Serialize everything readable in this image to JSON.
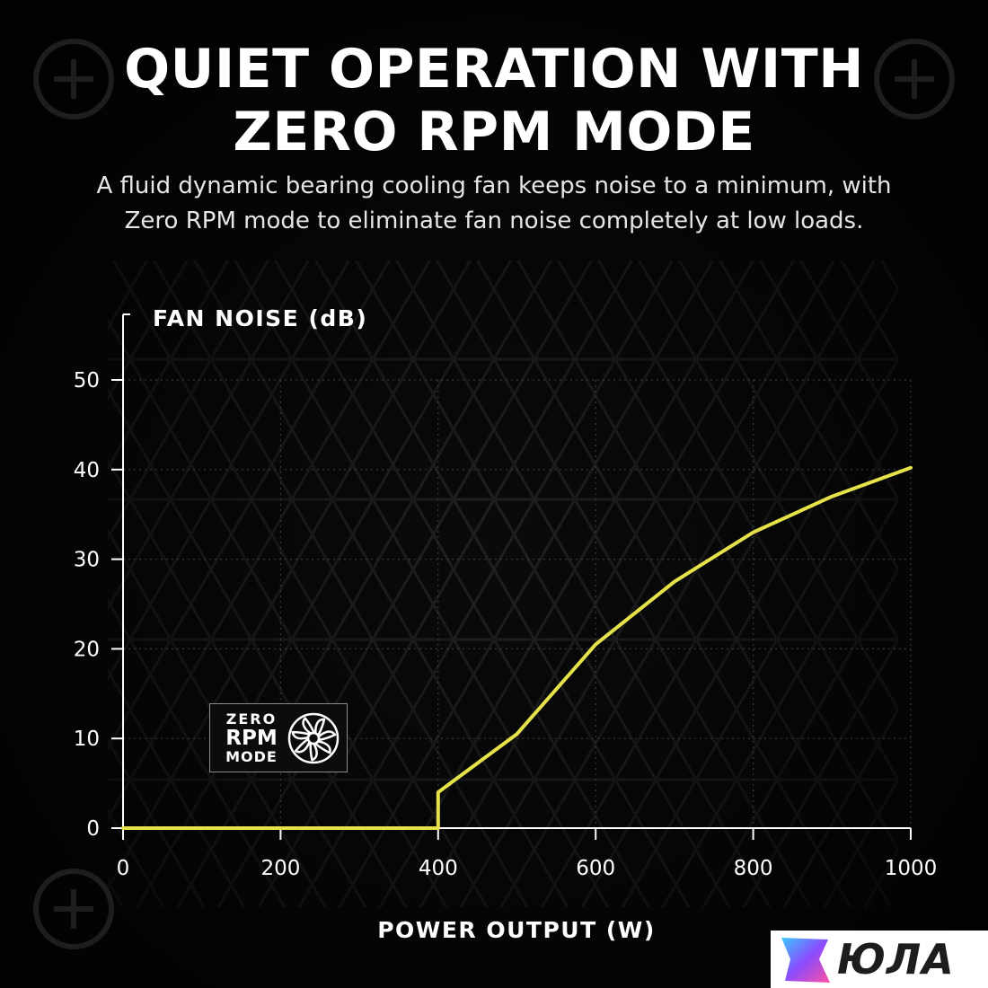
{
  "header": {
    "title_line1": "QUIET OPERATION WITH",
    "title_line2": "ZERO RPM MODE",
    "subtitle_line1": "A fluid dynamic bearing cooling fan keeps noise to a minimum, with",
    "subtitle_line2": "Zero RPM mode to eliminate fan noise completely at low loads."
  },
  "badge": {
    "line1": "ZERO",
    "line2": "RPM",
    "line3": "MODE",
    "icon": "fan-icon"
  },
  "watermark": {
    "text": "ЮЛА",
    "icon": "yula-star-logo-icon"
  },
  "colors": {
    "line": "#e6e24a",
    "background": "#0a0a0a",
    "text": "#ffffff",
    "grid": "#3a3a3a"
  },
  "chart_data": {
    "type": "line",
    "xlabel": "POWER OUTPUT (W)",
    "ylabel": "FAN NOISE (dB)",
    "xlim": [
      0,
      1000
    ],
    "ylim": [
      0,
      50
    ],
    "x_ticks": [
      0,
      200,
      400,
      600,
      800,
      1000
    ],
    "y_ticks": [
      0,
      10,
      20,
      30,
      40,
      50
    ],
    "grid": true,
    "series": [
      {
        "x": [
          0,
          400,
          400,
          500,
          600,
          700,
          800,
          900,
          1000
        ],
        "y": [
          0,
          0,
          4,
          10.5,
          20.5,
          27.5,
          33,
          37,
          40.2
        ]
      }
    ]
  }
}
